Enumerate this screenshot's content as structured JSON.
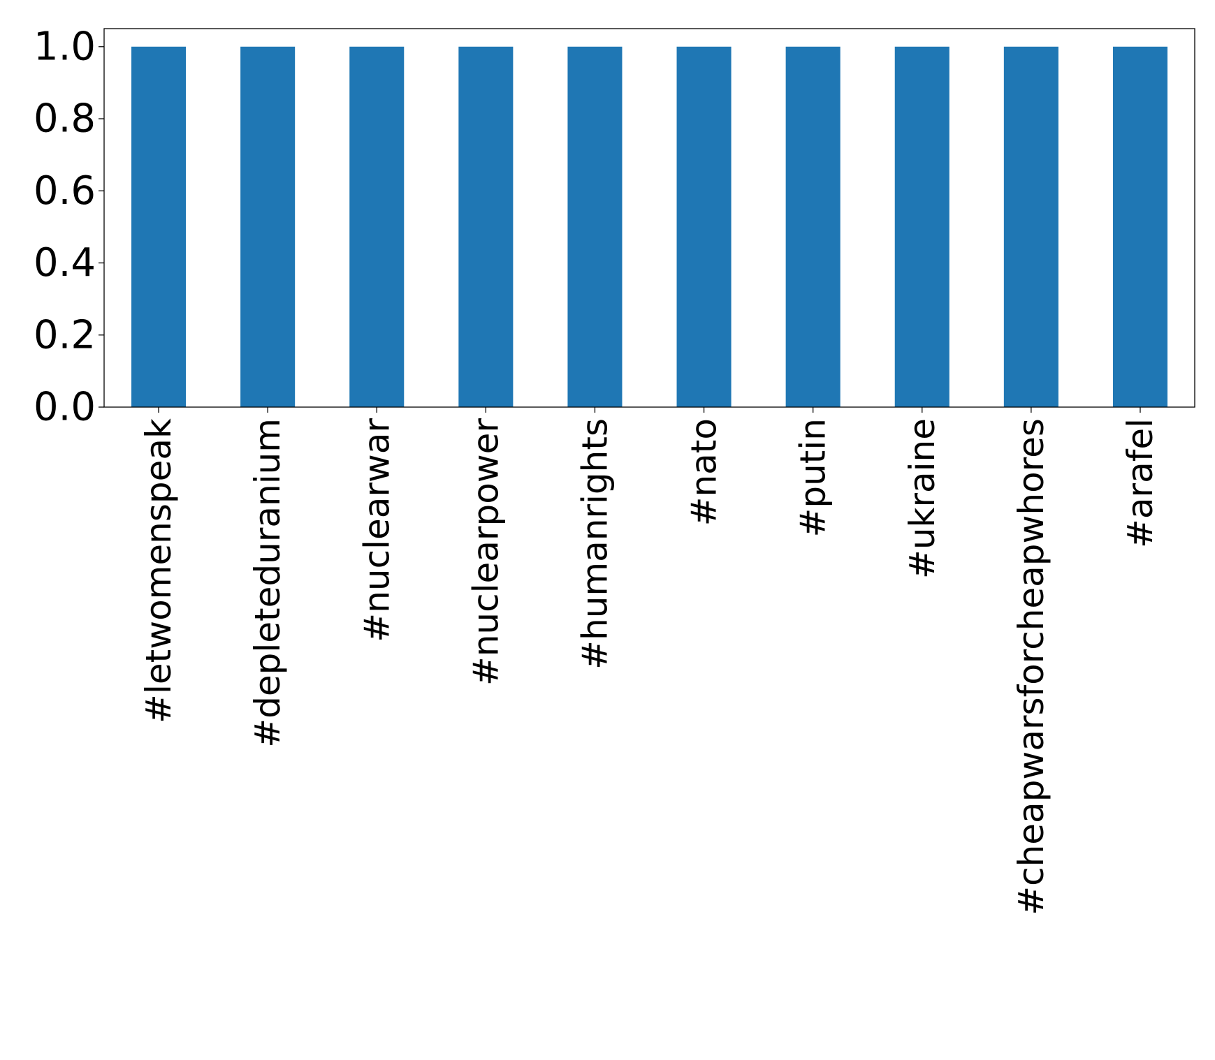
{
  "chart_data": {
    "type": "bar",
    "categories": [
      "#letwomenspeak",
      "#depleteduranium",
      "#nuclearwar",
      "#nuclearpower",
      "#humanrights",
      "#nato",
      "#putin",
      "#ukraine",
      "#cheapwarsforcheapwhores",
      "#arafel"
    ],
    "values": [
      1,
      1,
      1,
      1,
      1,
      1,
      1,
      1,
      1,
      1
    ],
    "ylim": [
      0,
      1.05
    ],
    "yticks": [
      "0.0",
      "0.2",
      "0.4",
      "0.6",
      "0.8",
      "1.0"
    ],
    "grid": false,
    "legend": "none",
    "bar_color": "#1f77b4"
  }
}
